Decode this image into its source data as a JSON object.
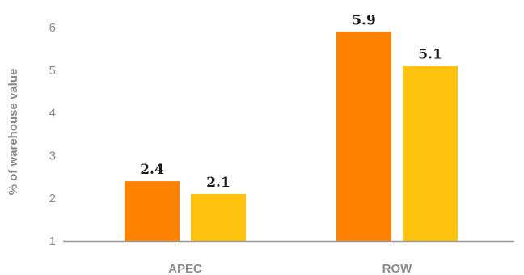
{
  "chart_data": {
    "type": "bar",
    "categories": [
      "APEC",
      "ROW"
    ],
    "series": [
      {
        "values": [
          2.4,
          5.9
        ],
        "color": "#FF8300"
      },
      {
        "values": [
          2.1,
          5.1
        ],
        "color": "#FFC20E"
      }
    ],
    "value_labels": [
      [
        "2.4",
        "5.9"
      ],
      [
        "2.1",
        "5.1"
      ]
    ],
    "ylabel": "% of warehouse value",
    "yticks": [
      "1",
      "2",
      "3",
      "4",
      "5",
      "6"
    ],
    "ylim": [
      1,
      6
    ],
    "grid": false,
    "axis_color": "#9a9a9a"
  }
}
